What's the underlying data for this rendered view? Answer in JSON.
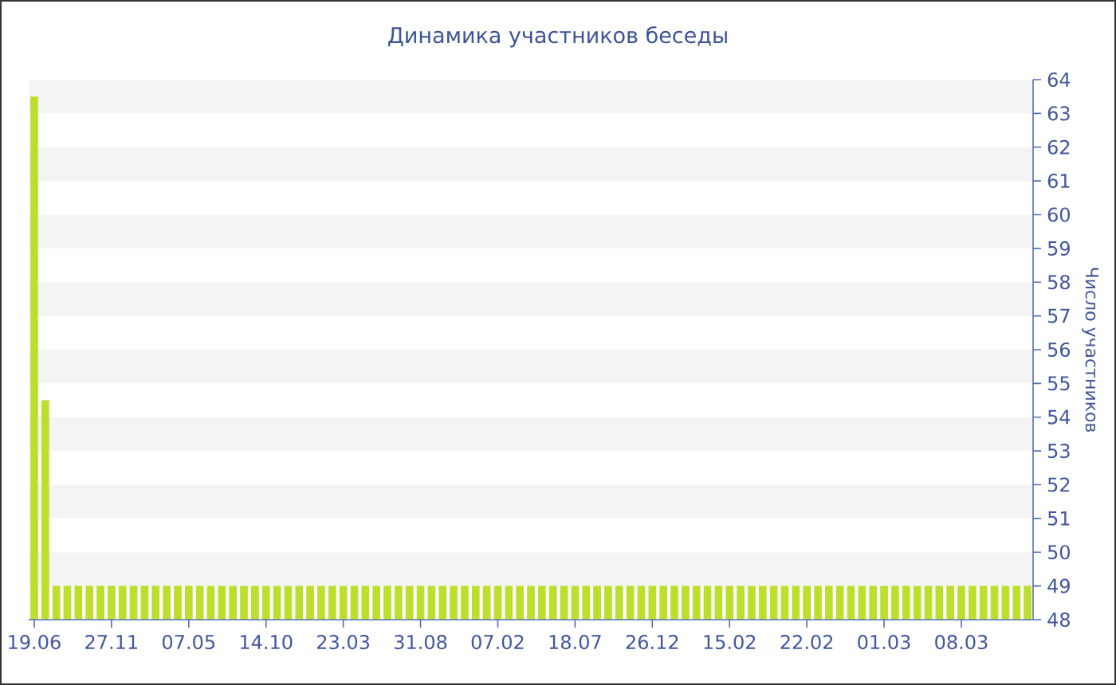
{
  "chart_data": {
    "type": "bar",
    "title": "Динамика участников беседы",
    "ylabel": "Число участников",
    "categories": [
      "19.06",
      null,
      null,
      null,
      null,
      null,
      null,
      "27.11",
      null,
      null,
      null,
      null,
      null,
      null,
      "07.05",
      null,
      null,
      null,
      null,
      null,
      null,
      "14.10",
      null,
      null,
      null,
      null,
      null,
      null,
      "23.03",
      null,
      null,
      null,
      null,
      null,
      null,
      "31.08",
      null,
      null,
      null,
      null,
      null,
      null,
      "07.02",
      null,
      null,
      null,
      null,
      null,
      null,
      "18.07",
      null,
      null,
      null,
      null,
      null,
      null,
      "26.12",
      null,
      null,
      null,
      null,
      null,
      null,
      "15.02",
      null,
      null,
      null,
      null,
      null,
      null,
      "22.02",
      null,
      null,
      null,
      null,
      null,
      null,
      "01.03",
      null,
      null,
      null,
      null,
      null,
      null,
      "08.03",
      null,
      null,
      null,
      null,
      null,
      null
    ],
    "values": [
      63.5,
      54.5,
      49,
      49,
      49,
      49,
      49,
      49,
      49,
      49,
      49,
      49,
      49,
      49,
      49,
      49,
      49,
      49,
      49,
      49,
      49,
      49,
      49,
      49,
      49,
      49,
      49,
      49,
      49,
      49,
      49,
      49,
      49,
      49,
      49,
      49,
      49,
      49,
      49,
      49,
      49,
      49,
      49,
      49,
      49,
      49,
      49,
      49,
      49,
      49,
      49,
      49,
      49,
      49,
      49,
      49,
      49,
      49,
      49,
      49,
      49,
      49,
      49,
      49,
      49,
      49,
      49,
      49,
      49,
      49,
      49,
      49,
      49,
      49,
      49,
      49,
      49,
      49,
      49,
      49,
      49,
      49,
      49,
      49,
      49,
      49,
      49,
      49,
      49,
      49,
      49
    ],
    "color": "#bcde2c",
    "ylim": [
      48,
      64
    ],
    "yticks": [
      48,
      49,
      50,
      51,
      52,
      53,
      54,
      55,
      56,
      57,
      58,
      59,
      60,
      61,
      62,
      63,
      64
    ],
    "bands": [
      {
        "axis": "y",
        "from": 49,
        "to": 50,
        "color": "#f4f4f4"
      },
      {
        "axis": "y",
        "from": 51,
        "to": 52,
        "color": "#f4f4f4"
      },
      {
        "axis": "y",
        "from": 53,
        "to": 54,
        "color": "#f4f4f4"
      },
      {
        "axis": "y",
        "from": 55,
        "to": 56,
        "color": "#f4f4f4"
      },
      {
        "axis": "y",
        "from": 57,
        "to": 58,
        "color": "#f4f4f4"
      },
      {
        "axis": "y",
        "from": 59,
        "to": 60,
        "color": "#f4f4f4"
      },
      {
        "axis": "y",
        "from": 61,
        "to": 62,
        "color": "#f4f4f4"
      },
      {
        "axis": "y",
        "from": 63,
        "to": 64,
        "color": "#f4f4f4"
      }
    ]
  }
}
